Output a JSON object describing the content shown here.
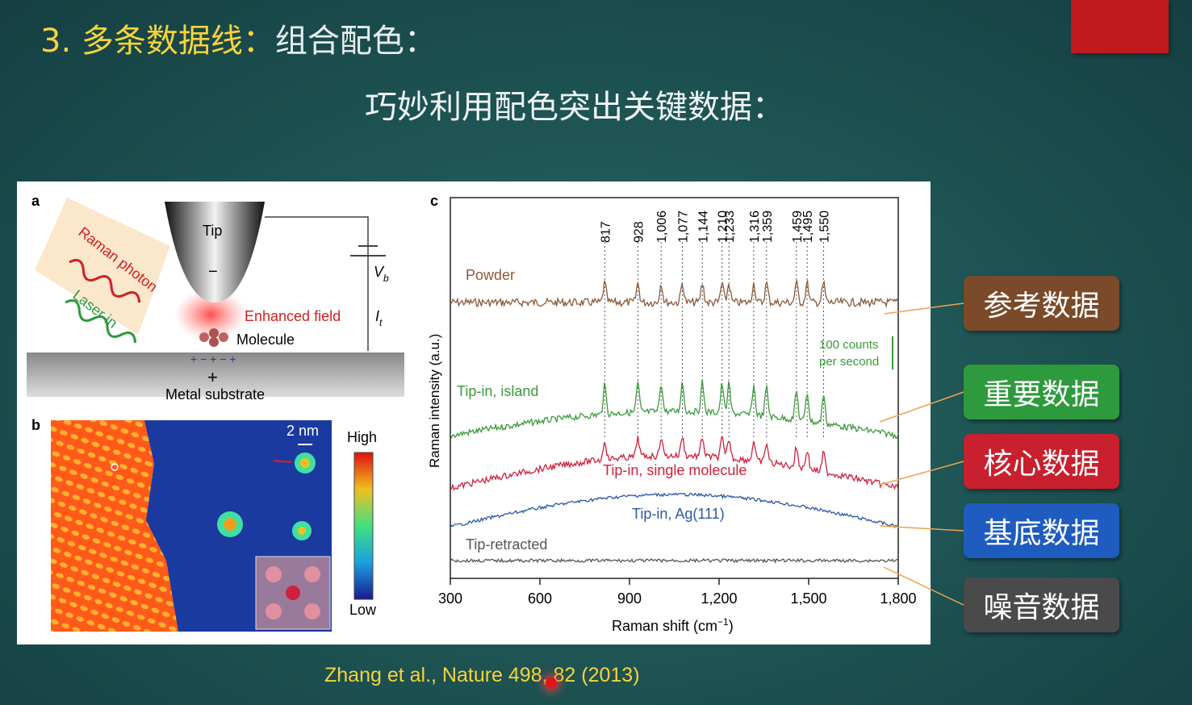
{
  "header": {
    "title_num": "3.",
    "title_main": "多条数据线：",
    "title_rest": "组合配色：",
    "subtitle": "巧妙利用配色突出关键数据："
  },
  "citation": "Zhang et al., Nature 498, 82 (2013)",
  "labels": [
    {
      "text": "参考数据",
      "color": "#7a4a2a"
    },
    {
      "text": "重要数据",
      "color": "#2e9a3e"
    },
    {
      "text": "核心数据",
      "color": "#c8202e"
    },
    {
      "text": "基底数据",
      "color": "#1f5cc0"
    },
    {
      "text": "噪音数据",
      "color": "#4a4a4a"
    }
  ],
  "panel_a": {
    "letter": "a",
    "tip": "Tip",
    "raman": "Raman photon",
    "laser": "Laser in",
    "field": "Enhanced field",
    "molecule": "Molecule",
    "substrate": "Metal substrate",
    "vb": "V",
    "vb_sub": "b",
    "it": "I",
    "it_sub": "t"
  },
  "panel_b": {
    "letter": "b",
    "scale": "2 nm",
    "high": "High",
    "low": "Low"
  },
  "chart_data": {
    "type": "line",
    "letter": "c",
    "xlabel": "Raman shift (cm",
    "xlabel_sup": "−1",
    "xlabel_end": ")",
    "ylabel": "Raman intensity (a.u.)",
    "xlim": [
      300,
      1800
    ],
    "xticks": [
      "300",
      "600",
      "900",
      "1,200",
      "1,500",
      "1,800"
    ],
    "xtick_values": [
      300,
      600,
      900,
      1200,
      1500,
      1800
    ],
    "peaks": [
      {
        "label": "817",
        "x": 817
      },
      {
        "label": "928",
        "x": 928
      },
      {
        "label": "1,006",
        "x": 1006
      },
      {
        "label": "1,077",
        "x": 1077
      },
      {
        "label": "1,144",
        "x": 1144
      },
      {
        "label": "1,210",
        "x": 1210
      },
      {
        "label": "1,233",
        "x": 1233
      },
      {
        "label": "1,316",
        "x": 1316
      },
      {
        "label": "1,359",
        "x": 1359
      },
      {
        "label": "1,459",
        "x": 1459
      },
      {
        "label": "1,495",
        "x": 1495
      },
      {
        "label": "1,550",
        "x": 1550
      }
    ],
    "scalebar": "100 counts",
    "scalebar2": "per second",
    "series": [
      {
        "name": "Powder",
        "color": "#8a5a3a"
      },
      {
        "name": "Tip-in, island",
        "color": "#3a9a3a"
      },
      {
        "name": "Tip-in, single molecule",
        "color": "#d0203a"
      },
      {
        "name": "Tip-in, Ag(111)",
        "color": "#2a58a8"
      },
      {
        "name": "Tip-retracted",
        "color": "#555555"
      }
    ]
  }
}
